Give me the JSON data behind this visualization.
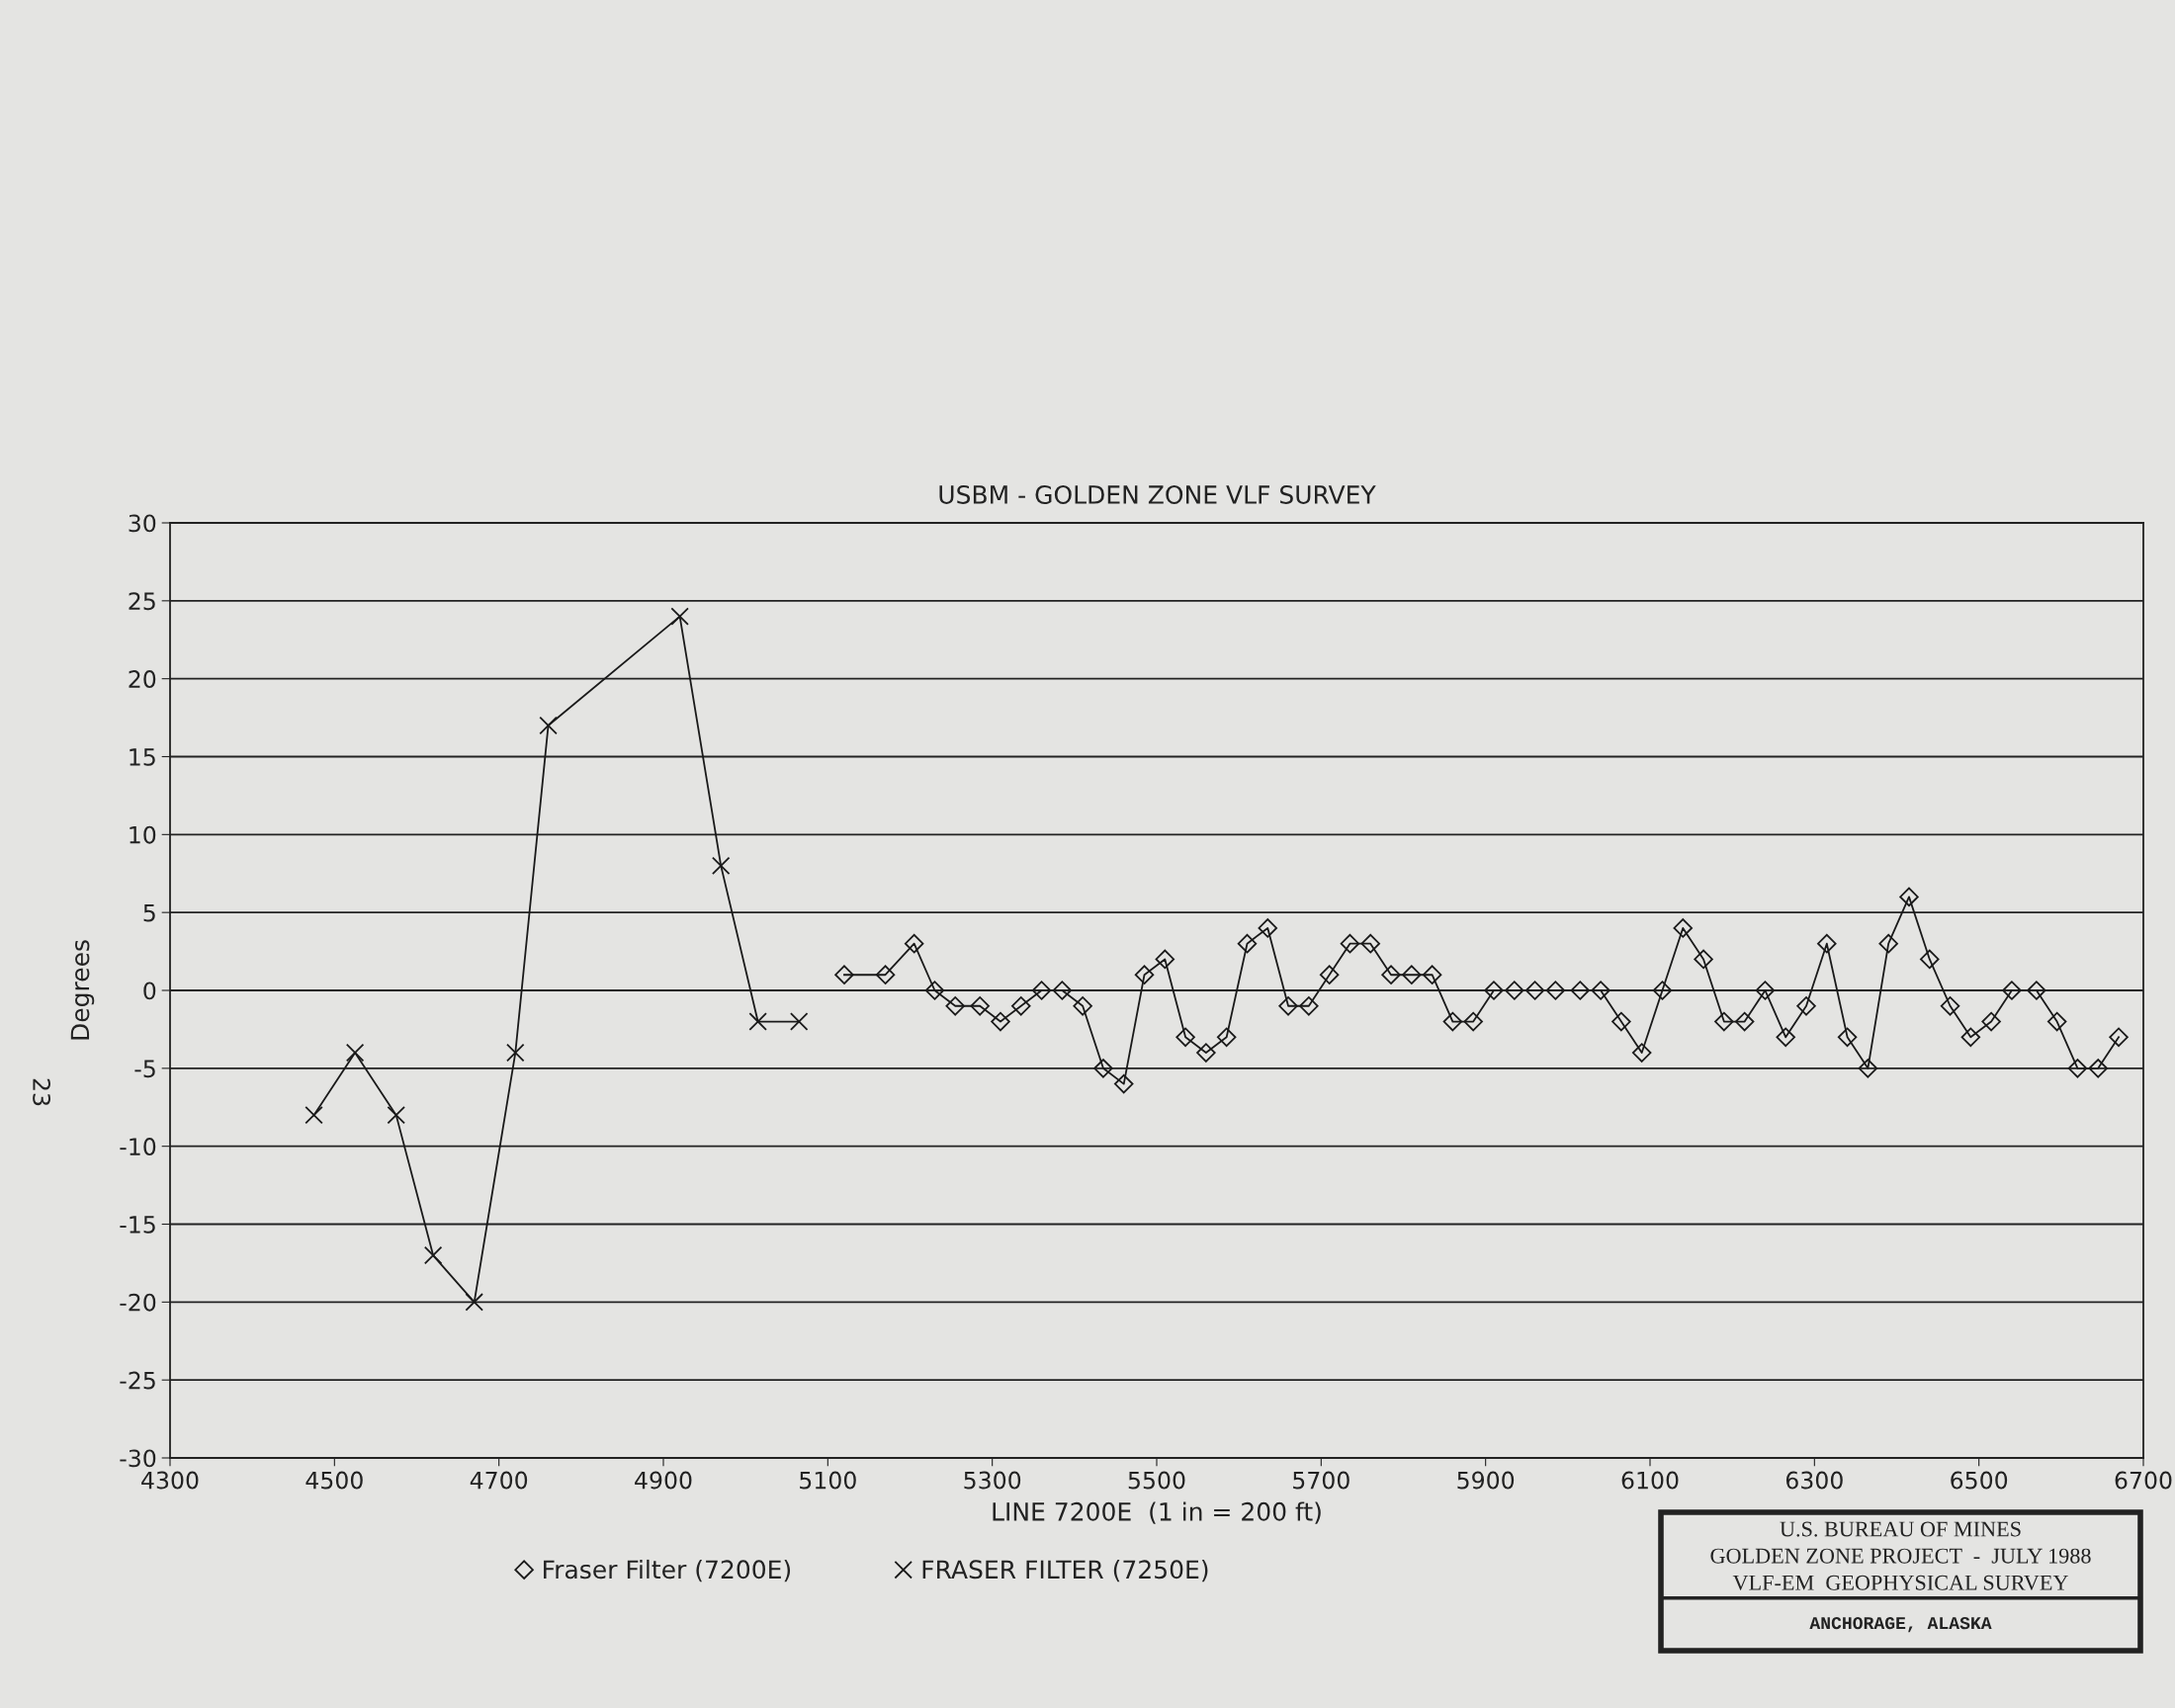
{
  "chart_data": {
    "type": "line",
    "title": "USBM - GOLDEN ZONE VLF SURVEY",
    "xlabel": "LINE 7200E  (1 in = 200 ft)",
    "ylabel": "Degrees",
    "series": [
      {
        "name": "Fraser Filter (7200E)",
        "color": "#1a1a1a",
        "marker": "diamond",
        "x": [
          5120,
          5170,
          5205,
          5230,
          5255,
          5285,
          5310,
          5335,
          5360,
          5385,
          5410,
          5435,
          5460,
          5485,
          5510,
          5535,
          5560,
          5585,
          5610,
          5635,
          5660,
          5685,
          5710,
          5735,
          5760,
          5785,
          5810,
          5835,
          5860,
          5885,
          5910,
          5935,
          5960,
          5985,
          6015,
          6040,
          6065,
          6090,
          6115,
          6140,
          6165,
          6190,
          6215,
          6240,
          6265,
          6290,
          6315,
          6340,
          6365,
          6390,
          6415,
          6440,
          6465,
          6490,
          6515,
          6540,
          6570,
          6595,
          6620,
          6645,
          6670
        ],
        "values": [
          1,
          1,
          3,
          0,
          -1,
          -1,
          -2,
          -1,
          0,
          0,
          -1,
          -5,
          -6,
          1,
          2,
          -3,
          -4,
          -3,
          3,
          4,
          -1,
          -1,
          1,
          3,
          3,
          1,
          1,
          1,
          -2,
          -2,
          0,
          0,
          0,
          0,
          0,
          0,
          -2,
          -4,
          0,
          4,
          2,
          -2,
          -2,
          0,
          -3,
          -1,
          3,
          -3,
          -5,
          3,
          6,
          2,
          -1,
          -3,
          -2,
          0,
          0,
          -2,
          -5,
          -5,
          -3
        ]
      },
      {
        "name": "FRASER FILTER (7250E)",
        "color": "#1a1a1a",
        "marker": "cross",
        "x": [
          4475,
          4525,
          4575,
          4620,
          4670,
          4720,
          4760,
          4920,
          4970,
          5015,
          5065
        ],
        "values": [
          -8,
          -4,
          -8,
          -17,
          -20,
          -4,
          17,
          24,
          8,
          -2,
          -2
        ]
      }
    ],
    "xlim": [
      4300,
      6700
    ],
    "xticks": [
      4300,
      4500,
      4700,
      4900,
      5100,
      5300,
      5500,
      5700,
      5900,
      6100,
      6300,
      6500,
      6700
    ],
    "ylim": [
      -30,
      30
    ],
    "yticks": [
      -30,
      -25,
      -20,
      -15,
      -10,
      -5,
      0,
      5,
      10,
      15,
      20,
      25,
      30
    ],
    "grid": "y",
    "legend": "bottom",
    "line_style": "solid",
    "annotations": [
      "U.S. BUREAU OF MINES",
      "GOLDEN ZONE PROJECT  -  JULY 1988",
      "VLF-EM  GEOPHYSICAL SURVEY",
      "ANCHORAGE, ALASKA",
      "23"
    ]
  }
}
